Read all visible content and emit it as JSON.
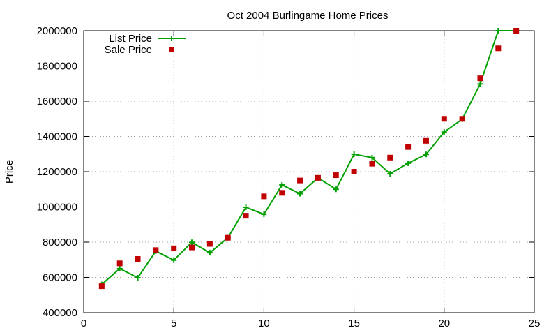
{
  "chart_data": {
    "type": "line",
    "title": "Oct 2004 Burlingame Home Prices",
    "xlabel": "",
    "ylabel": "Price",
    "xlim": [
      0,
      25
    ],
    "ylim": [
      400000,
      2000000
    ],
    "xticks": [
      0,
      5,
      10,
      15,
      20,
      25
    ],
    "yticks": [
      400000,
      600000,
      800000,
      1000000,
      1200000,
      1400000,
      1600000,
      1800000,
      2000000
    ],
    "grid": true,
    "legend_position": "top-left",
    "series": [
      {
        "name": "List Price",
        "type": "line",
        "marker": "plus",
        "color": "#00a000",
        "x": [
          1,
          2,
          3,
          4,
          5,
          6,
          7,
          8,
          9,
          10,
          11,
          12,
          13,
          14,
          15,
          16,
          17,
          18,
          19,
          20,
          21,
          22,
          23,
          24
        ],
        "values": [
          560000,
          650000,
          598000,
          749000,
          698000,
          799000,
          740000,
          825000,
          998000,
          958000,
          1125000,
          1075000,
          1165000,
          1100000,
          1299000,
          1280000,
          1188000,
          1248000,
          1298000,
          1425000,
          1498000,
          1698000,
          2000000,
          2000000
        ]
      },
      {
        "name": "Sale Price",
        "type": "scatter",
        "marker": "square",
        "color": "#c00000",
        "x": [
          1,
          2,
          3,
          4,
          5,
          6,
          7,
          8,
          9,
          10,
          11,
          12,
          13,
          14,
          15,
          16,
          17,
          18,
          19,
          20,
          21,
          22,
          23,
          24
        ],
        "values": [
          550000,
          680000,
          705000,
          755000,
          765000,
          770000,
          790000,
          825000,
          950000,
          1060000,
          1080000,
          1150000,
          1165000,
          1180000,
          1200000,
          1245000,
          1280000,
          1340000,
          1375000,
          1500000,
          1500000,
          1730000,
          1900000,
          2000000
        ]
      }
    ]
  }
}
